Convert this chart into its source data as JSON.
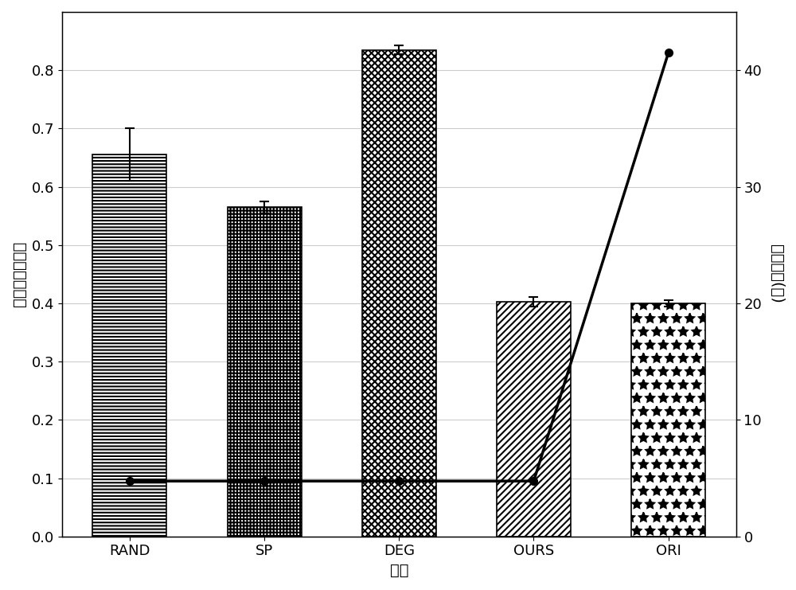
{
  "categories": [
    "RAND",
    "SP",
    "DEG",
    "OURS",
    "ORI"
  ],
  "bar_values": [
    0.655,
    0.565,
    0.835,
    0.403,
    0.4
  ],
  "bar_errors": [
    0.045,
    0.01,
    0.008,
    0.008,
    0.005
  ],
  "xlabel": "方法",
  "ylabel_left": "最大链路利用率",
  "ylabel_right": "计算时间(秒)",
  "ylim_left": [
    0.0,
    0.9
  ],
  "ylim_right": [
    0,
    45
  ],
  "yticks_left": [
    0.0,
    0.1,
    0.2,
    0.3,
    0.4,
    0.5,
    0.6,
    0.7,
    0.8
  ],
  "yticks_right": [
    0,
    10,
    20,
    30,
    40
  ],
  "background_color": "#ffffff",
  "bar_edge_color": "#000000",
  "line_color": "#000000",
  "line_marker": "o",
  "line_marker_size": 7,
  "hatch_patterns": [
    "----",
    "++++",
    "xxxx",
    "////",
    "stars"
  ],
  "hatch_linewidth": 1.0,
  "bar_width": 0.55,
  "label_fontsize": 14,
  "tick_fontsize": 13,
  "line_right_values": [
    4.75,
    4.75,
    4.75,
    4.75,
    41.5
  ],
  "grid_color": "#cccccc",
  "grid_linewidth": 0.8
}
